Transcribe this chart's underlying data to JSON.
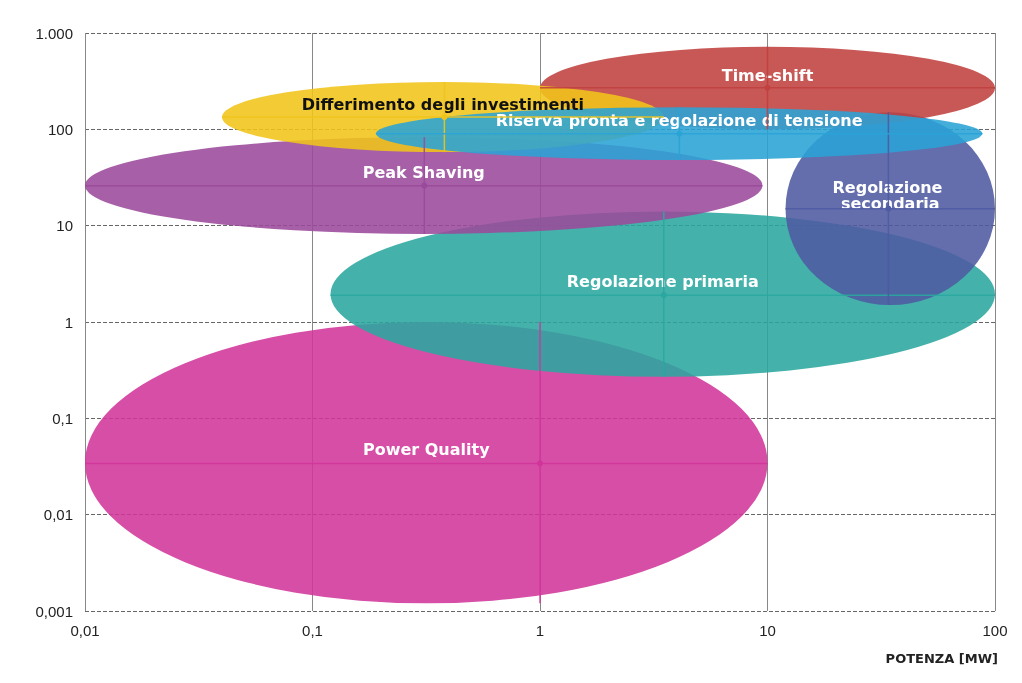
{
  "chart_data": {
    "type": "scatter",
    "xlabel": "POTENZA [MW]",
    "log": "xy",
    "xlim": [
      0.01,
      100
    ],
    "xticks": [
      {
        "value": 0.01,
        "label": "0,01"
      },
      {
        "value": 0.1,
        "label": "0,1"
      },
      1,
      10,
      100
    ],
    "ylim": [
      0.001,
      1000
    ],
    "yticks": [
      {
        "value": 0.001,
        "label": "0,001"
      },
      {
        "value": 0.01,
        "label": "0,01"
      },
      {
        "value": 0.1,
        "label": "0,1"
      },
      1,
      10,
      100,
      {
        "value": 1000,
        "label": "1.000"
      }
    ],
    "grid": true,
    "legend": false,
    "series": [
      {
        "name": "Power Quality",
        "color": "#d1359b",
        "x": [
          1
        ],
        "values": [
          0.034
        ],
        "xerrors": [
          [
            0.01,
            10
          ]
        ],
        "errors": [
          [
            0.0012,
            1
          ]
        ]
      },
      {
        "name": "Regolazione primaria",
        "color": "#2aa79f",
        "x": [
          3.5
        ],
        "values": [
          1.9
        ],
        "xerrors": [
          [
            0.12,
            100
          ]
        ],
        "errors": [
          [
            0.27,
            14
          ]
        ]
      },
      {
        "name": "Peak Shaving",
        "color": "#9b4a9b",
        "x": [
          0.31
        ],
        "values": [
          26
        ],
        "xerrors": [
          [
            0.01,
            9.5
          ]
        ],
        "errors": [
          [
            8.2,
            83
          ]
        ]
      },
      {
        "name": "Regolazione secondaria",
        "color": "#4e5aa2",
        "x": [
          34
        ],
        "values": [
          15
        ],
        "xerrors": [
          [
            12,
            100
          ]
        ],
        "errors": [
          [
            1.5,
            150
          ]
        ]
      },
      {
        "name": "Time-shift",
        "color": "#c0413f",
        "x": [
          10
        ],
        "values": [
          270
        ],
        "xerrors": [
          [
            1,
            100
          ]
        ],
        "errors": [
          [
            100,
            720
          ]
        ]
      },
      {
        "name": "Differimento degli investimenti",
        "color": "#f0c419",
        "x": [
          0.38
        ],
        "values": [
          134
        ],
        "xerrors": [
          [
            0.04,
            3.5
          ]
        ],
        "errors": [
          [
            58,
            310
          ]
        ]
      },
      {
        "name": "Riserva pronta e regolazione di tensione",
        "color": "#2aa3d6",
        "x": [
          4.1
        ],
        "values": [
          90
        ],
        "xerrors": [
          [
            0.19,
            88
          ]
        ],
        "errors": [
          [
            48,
            170
          ]
        ]
      }
    ]
  }
}
